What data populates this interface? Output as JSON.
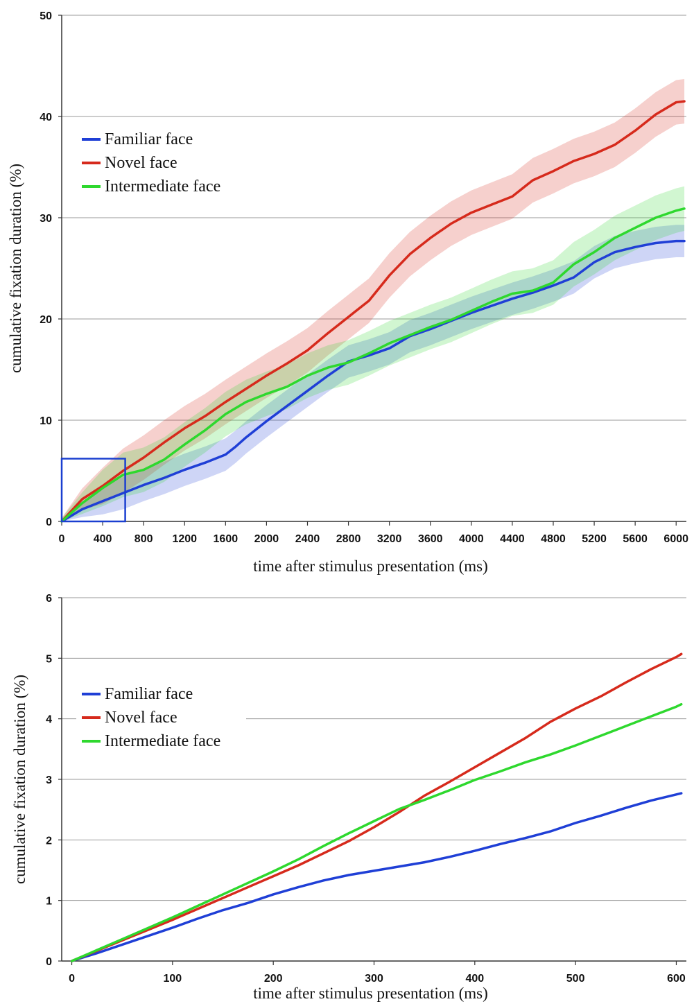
{
  "chart_data": [
    {
      "type": "line",
      "xlabel": "time after stimulus presentation (ms)",
      "ylabel": "cumulative fixation duration (%)",
      "xlim": [
        0,
        6100
      ],
      "ylim": [
        0,
        50
      ],
      "xticks": [
        0,
        400,
        800,
        1200,
        1600,
        2000,
        2400,
        2800,
        3200,
        3600,
        4000,
        4400,
        4800,
        5200,
        5600,
        6000
      ],
      "yticks": [
        0,
        10,
        20,
        30,
        40,
        50
      ],
      "grid": true,
      "legend_position": "upper-left",
      "inset_box": {
        "x": [
          0,
          620
        ],
        "y": [
          0,
          6.2
        ]
      },
      "series": [
        {
          "name": "Familiar face",
          "color": "#1f3fd6",
          "band": 1.6,
          "x": [
            0,
            200,
            400,
            600,
            800,
            1000,
            1200,
            1400,
            1600,
            1700,
            1800,
            2000,
            2200,
            2400,
            2600,
            2800,
            3000,
            3200,
            3400,
            3600,
            3800,
            4000,
            4200,
            4400,
            4600,
            4800,
            5000,
            5200,
            5400,
            5600,
            5800,
            6000,
            6080
          ],
          "y": [
            0,
            1.2,
            2.0,
            2.8,
            3.6,
            4.3,
            5.1,
            5.8,
            6.6,
            7.4,
            8.3,
            9.9,
            11.4,
            12.9,
            14.4,
            15.8,
            16.4,
            17.1,
            18.3,
            19.0,
            19.8,
            20.6,
            21.3,
            22.0,
            22.6,
            23.3,
            24.1,
            25.6,
            26.6,
            27.1,
            27.5,
            27.7,
            27.7
          ]
        },
        {
          "name": "Novel face",
          "color": "#d62a1c",
          "band": 2.2,
          "x": [
            0,
            200,
            400,
            600,
            800,
            1000,
            1200,
            1400,
            1600,
            1800,
            2000,
            2200,
            2400,
            2600,
            2800,
            3000,
            3200,
            3400,
            3600,
            3800,
            4000,
            4200,
            4400,
            4600,
            4800,
            5000,
            5200,
            5400,
            5600,
            5800,
            6000,
            6080
          ],
          "y": [
            0,
            2.2,
            3.5,
            5.0,
            6.3,
            7.8,
            9.2,
            10.4,
            11.8,
            13.1,
            14.4,
            15.6,
            16.9,
            18.6,
            20.2,
            21.8,
            24.3,
            26.4,
            28.0,
            29.4,
            30.5,
            31.3,
            32.1,
            33.7,
            34.6,
            35.6,
            36.3,
            37.2,
            38.6,
            40.2,
            41.4,
            41.5
          ]
        },
        {
          "name": "Intermediate face",
          "color": "#2ed82e",
          "band": 2.2,
          "x": [
            0,
            200,
            400,
            600,
            800,
            1000,
            1200,
            1400,
            1600,
            1800,
            2000,
            2200,
            2400,
            2600,
            2800,
            3000,
            3200,
            3400,
            3600,
            3800,
            4000,
            4200,
            4400,
            4600,
            4800,
            5000,
            5200,
            5400,
            5600,
            5800,
            6000,
            6080
          ],
          "y": [
            0,
            1.8,
            3.3,
            4.6,
            5.1,
            6.1,
            7.6,
            9.0,
            10.6,
            11.8,
            12.6,
            13.3,
            14.4,
            15.2,
            15.7,
            16.6,
            17.6,
            18.4,
            19.2,
            19.9,
            20.8,
            21.7,
            22.5,
            22.8,
            23.6,
            25.4,
            26.6,
            28.0,
            29.0,
            30.0,
            30.7,
            30.9
          ]
        }
      ]
    },
    {
      "type": "line",
      "xlabel": "time after stimulus presentation (ms)",
      "ylabel": "cumulative fixation duration (%)",
      "xlim": [
        -10,
        610
      ],
      "ylim": [
        0,
        6
      ],
      "xticks": [
        0,
        100,
        200,
        300,
        400,
        500,
        600
      ],
      "yticks": [
        0,
        1,
        2,
        3,
        4,
        5,
        6
      ],
      "grid": true,
      "legend_position": "upper-left",
      "series": [
        {
          "name": "Familiar face",
          "color": "#1f3fd6",
          "x": [
            0,
            25,
            50,
            75,
            100,
            125,
            150,
            175,
            200,
            225,
            250,
            275,
            300,
            325,
            350,
            375,
            400,
            425,
            450,
            475,
            500,
            525,
            550,
            575,
            600,
            605
          ],
          "y": [
            0,
            0.13,
            0.27,
            0.41,
            0.55,
            0.7,
            0.84,
            0.96,
            1.1,
            1.22,
            1.33,
            1.42,
            1.49,
            1.56,
            1.63,
            1.72,
            1.82,
            1.93,
            2.03,
            2.14,
            2.28,
            2.4,
            2.53,
            2.65,
            2.75,
            2.77
          ]
        },
        {
          "name": "Novel face",
          "color": "#d62a1c",
          "x": [
            0,
            25,
            50,
            75,
            100,
            125,
            150,
            175,
            200,
            225,
            250,
            275,
            300,
            325,
            350,
            375,
            400,
            425,
            450,
            475,
            500,
            525,
            550,
            575,
            600,
            605
          ],
          "y": [
            0,
            0.17,
            0.34,
            0.51,
            0.68,
            0.86,
            1.04,
            1.22,
            1.4,
            1.58,
            1.78,
            1.98,
            2.21,
            2.46,
            2.73,
            2.96,
            3.2,
            3.44,
            3.68,
            3.95,
            4.17,
            4.37,
            4.6,
            4.82,
            5.02,
            5.07
          ]
        },
        {
          "name": "Intermediate face",
          "color": "#2ed82e",
          "x": [
            0,
            25,
            50,
            75,
            100,
            125,
            150,
            175,
            200,
            225,
            250,
            275,
            300,
            325,
            350,
            375,
            400,
            425,
            450,
            475,
            500,
            525,
            550,
            575,
            600,
            605
          ],
          "y": [
            0,
            0.18,
            0.36,
            0.54,
            0.72,
            0.91,
            1.1,
            1.29,
            1.48,
            1.68,
            1.9,
            2.11,
            2.31,
            2.51,
            2.66,
            2.82,
            2.99,
            3.13,
            3.28,
            3.41,
            3.56,
            3.72,
            3.88,
            4.04,
            4.2,
            4.24
          ]
        }
      ]
    }
  ]
}
